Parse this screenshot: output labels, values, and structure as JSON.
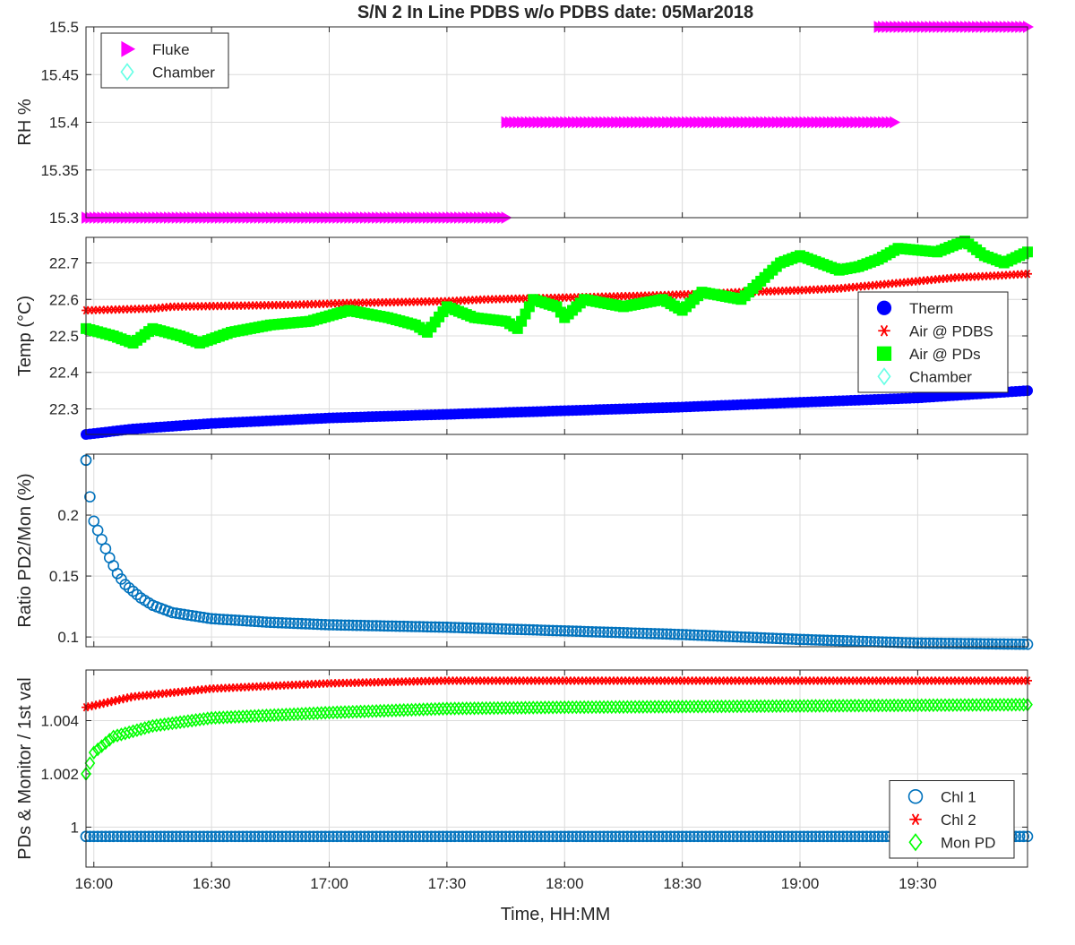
{
  "figure": {
    "title": "S/N 2 In Line PDBS w/o PDBS date: 05Mar2018",
    "xlabel": "Time, HH:MM"
  },
  "colors": {
    "fluke": "#ff00ff",
    "chamber": "#66ffe6",
    "therm": "#0000ff",
    "air_pdbs": "#ff0000",
    "air_pds": "#00ff00",
    "ratio": "#0072bd",
    "chl1": "#0072bd",
    "chl2": "#ff0000",
    "mon_pd": "#00ff00"
  },
  "chart_data": [
    {
      "type": "scatter",
      "ylabel": "RH %",
      "xlim": [
        "15:58",
        "19:58"
      ],
      "ylim": [
        15.3,
        15.5
      ],
      "xticks": [
        "16:00",
        "16:30",
        "17:00",
        "17:30",
        "18:00",
        "18:30",
        "19:00",
        "19:30"
      ],
      "yticks": [
        "15.3",
        "15.35",
        "15.4",
        "15.45",
        "15.5"
      ],
      "grid": true,
      "legend": {
        "position": "top-left",
        "entries": [
          "Fluke",
          "Chamber"
        ]
      },
      "series": [
        {
          "name": "Fluke",
          "marker": "triangle-right",
          "segments": [
            {
              "x_start": "15:58",
              "x_end": "17:45",
              "y": 15.3
            },
            {
              "x_start": "17:45",
              "x_end": "19:24",
              "y": 15.4
            },
            {
              "x_start": "19:20",
              "x_end": "19:58",
              "y": 15.5
            }
          ]
        },
        {
          "name": "Chamber",
          "marker": "diamond",
          "segments": []
        }
      ]
    },
    {
      "type": "scatter",
      "ylabel": "Temp (°C)",
      "xlim": [
        "15:58",
        "19:58"
      ],
      "ylim": [
        22.23,
        22.77
      ],
      "yticks": [
        "22.3",
        "22.4",
        "22.5",
        "22.6",
        "22.7"
      ],
      "grid": true,
      "legend": {
        "position": "right",
        "entries": [
          "Therm",
          "Air @ PDBS",
          "Air @ PDs",
          "Chamber"
        ]
      },
      "series": [
        {
          "name": "Therm",
          "marker": "circle-filled",
          "points": [
            [
              "15:58",
              22.23
            ],
            [
              "16:10",
              22.245
            ],
            [
              "16:30",
              22.26
            ],
            [
              "17:00",
              22.275
            ],
            [
              "17:30",
              22.285
            ],
            [
              "18:00",
              22.295
            ],
            [
              "18:30",
              22.305
            ],
            [
              "19:00",
              22.318
            ],
            [
              "19:30",
              22.33
            ],
            [
              "19:58",
              22.35
            ]
          ]
        },
        {
          "name": "Air @ PDBS",
          "marker": "asterisk",
          "points": [
            [
              "15:58",
              22.57
            ],
            [
              "16:15",
              22.575
            ],
            [
              "16:20",
              22.58
            ],
            [
              "16:50",
              22.585
            ],
            [
              "17:05",
              22.59
            ],
            [
              "17:30",
              22.595
            ],
            [
              "17:40",
              22.6
            ],
            [
              "18:00",
              22.605
            ],
            [
              "18:20",
              22.61
            ],
            [
              "18:35",
              22.615
            ],
            [
              "18:45",
              22.62
            ],
            [
              "19:00",
              22.625
            ],
            [
              "19:10",
              22.63
            ],
            [
              "19:20",
              22.64
            ],
            [
              "19:30",
              22.65
            ],
            [
              "19:40",
              22.66
            ],
            [
              "19:50",
              22.665
            ],
            [
              "19:58",
              22.67
            ]
          ]
        },
        {
          "name": "Air @ PDs",
          "marker": "square-filled",
          "points": [
            [
              "15:58",
              22.52
            ],
            [
              "16:05",
              22.5
            ],
            [
              "16:10",
              22.48
            ],
            [
              "16:15",
              22.52
            ],
            [
              "16:22",
              22.5
            ],
            [
              "16:27",
              22.48
            ],
            [
              "16:35",
              22.51
            ],
            [
              "16:45",
              22.53
            ],
            [
              "16:55",
              22.54
            ],
            [
              "17:05",
              22.57
            ],
            [
              "17:15",
              22.55
            ],
            [
              "17:22",
              22.53
            ],
            [
              "17:25",
              22.51
            ],
            [
              "17:30",
              22.58
            ],
            [
              "17:37",
              22.55
            ],
            [
              "17:45",
              22.54
            ],
            [
              "17:48",
              22.52
            ],
            [
              "17:52",
              22.6
            ],
            [
              "17:58",
              22.58
            ],
            [
              "18:00",
              22.55
            ],
            [
              "18:05",
              22.6
            ],
            [
              "18:15",
              22.58
            ],
            [
              "18:25",
              22.6
            ],
            [
              "18:30",
              22.57
            ],
            [
              "18:35",
              22.62
            ],
            [
              "18:45",
              22.6
            ],
            [
              "18:50",
              22.65
            ],
            [
              "18:55",
              22.7
            ],
            [
              "19:00",
              22.72
            ],
            [
              "19:05",
              22.7
            ],
            [
              "19:10",
              22.68
            ],
            [
              "19:15",
              22.69
            ],
            [
              "19:20",
              22.71
            ],
            [
              "19:25",
              22.74
            ],
            [
              "19:35",
              22.73
            ],
            [
              "19:42",
              22.76
            ],
            [
              "19:47",
              22.72
            ],
            [
              "19:52",
              22.7
            ],
            [
              "19:58",
              22.73
            ]
          ]
        },
        {
          "name": "Chamber",
          "marker": "diamond",
          "points": []
        }
      ]
    },
    {
      "type": "scatter",
      "ylabel": "Ratio PD2/Mon (%)",
      "xlim": [
        "15:58",
        "19:58"
      ],
      "ylim": [
        0.092,
        0.25
      ],
      "yticks": [
        "0.1",
        "0.15",
        "0.2"
      ],
      "grid": true,
      "series": [
        {
          "name": "",
          "marker": "circle-open",
          "points": [
            [
              "15:58",
              0.245
            ],
            [
              "15:59",
              0.215
            ],
            [
              "16:00",
              0.195
            ],
            [
              "16:02",
              0.18
            ],
            [
              "16:04",
              0.165
            ],
            [
              "16:06",
              0.152
            ],
            [
              "16:08",
              0.143
            ],
            [
              "16:12",
              0.132
            ],
            [
              "16:15",
              0.126
            ],
            [
              "16:20",
              0.12
            ],
            [
              "16:30",
              0.115
            ],
            [
              "16:45",
              0.112
            ],
            [
              "17:00",
              0.11
            ],
            [
              "17:30",
              0.108
            ],
            [
              "18:00",
              0.105
            ],
            [
              "18:30",
              0.102
            ],
            [
              "19:00",
              0.098
            ],
            [
              "19:30",
              0.095
            ],
            [
              "19:58",
              0.094
            ]
          ]
        }
      ]
    },
    {
      "type": "scatter",
      "ylabel": "PDs & Monitor / 1st val",
      "xlim": [
        "15:58",
        "19:58"
      ],
      "ylim": [
        0.9985,
        1.0059
      ],
      "yticks": [
        "1",
        "1.002",
        "1.004"
      ],
      "grid": true,
      "legend": {
        "position": "bottom-right",
        "entries": [
          "Chl 1",
          "Chl 2",
          "Mon PD"
        ]
      },
      "series": [
        {
          "name": "Chl 1",
          "marker": "circle-open",
          "points": [
            [
              "15:58",
              0.99965
            ],
            [
              "19:58",
              0.99965
            ]
          ]
        },
        {
          "name": "Chl 2",
          "marker": "asterisk",
          "points": [
            [
              "15:58",
              1.0045
            ],
            [
              "16:10",
              1.0049
            ],
            [
              "16:30",
              1.0052
            ],
            [
              "17:00",
              1.0054
            ],
            [
              "17:30",
              1.0055
            ],
            [
              "18:00",
              1.0055
            ],
            [
              "19:58",
              1.0055
            ]
          ]
        },
        {
          "name": "Mon PD",
          "marker": "diamond",
          "points": [
            [
              "15:58",
              1.002
            ],
            [
              "16:00",
              1.0028
            ],
            [
              "16:05",
              1.0034
            ],
            [
              "16:15",
              1.0038
            ],
            [
              "16:30",
              1.0041
            ],
            [
              "17:00",
              1.0043
            ],
            [
              "17:30",
              1.00445
            ],
            [
              "18:00",
              1.0045
            ],
            [
              "19:58",
              1.0046
            ]
          ]
        }
      ]
    }
  ]
}
